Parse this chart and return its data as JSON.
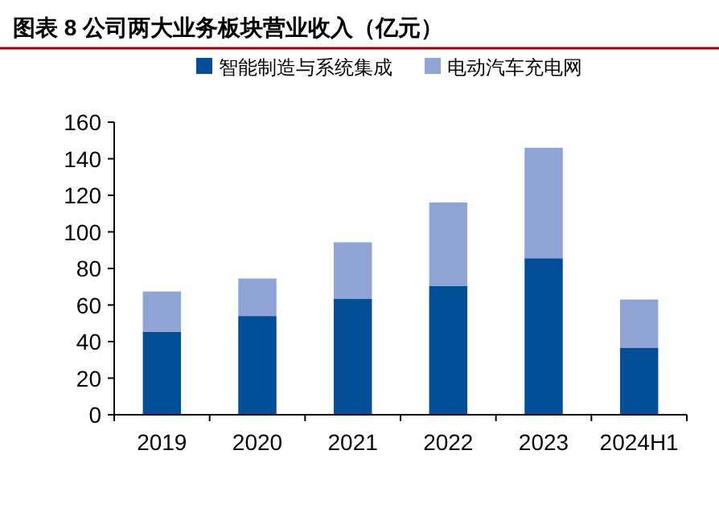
{
  "chart_data": {
    "type": "bar",
    "title": "图表 8 公司两大业务板块营业收入（亿元）",
    "stacked": true,
    "legend": "top",
    "grid": false,
    "categories": [
      "2019",
      "2020",
      "2021",
      "2022",
      "2023",
      "2024H1"
    ],
    "series": [
      {
        "name": "智能制造与系统集成",
        "color": "#024f98",
        "values": [
          45.4,
          54,
          63.3,
          70.4,
          85.6,
          36.7
        ]
      },
      {
        "name": "电动汽车充电网",
        "color": "#8fa3d4",
        "values": [
          22,
          20.5,
          31,
          45.7,
          60.4,
          26.3
        ]
      }
    ],
    "ylim": [
      0,
      160
    ],
    "yticks": [
      0,
      20,
      40,
      60,
      80,
      100,
      120,
      140,
      160
    ]
  }
}
